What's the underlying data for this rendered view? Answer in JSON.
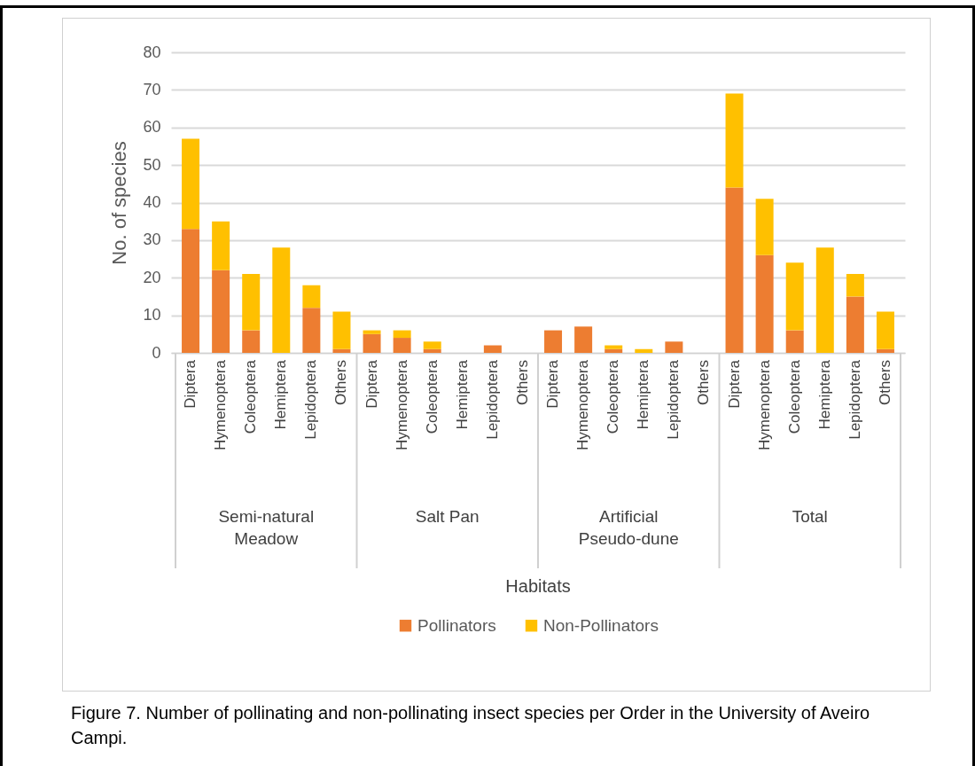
{
  "chart_data": {
    "type": "bar",
    "stacked": true,
    "ylabel": "No. of species",
    "categories": [
      "Diptera",
      "Hymenoptera",
      "Coleoptera",
      "Hemiptera",
      "Lepidoptera",
      "Others",
      "Diptera",
      "Hymenoptera",
      "Coleoptera",
      "Hemiptera",
      "Lepidoptera",
      "Others",
      "Diptera",
      "Hymenoptera",
      "Coleoptera",
      "Hemiptera",
      "Lepidoptera",
      "Others",
      "Diptera",
      "Hymenoptera",
      "Coleoptera",
      "Hemiptera",
      "Lepidoptera",
      "Others"
    ],
    "series": [
      {
        "name": "Pollinators",
        "color": "#ed7d31",
        "values": [
          33,
          22,
          6,
          0,
          12,
          1,
          5,
          4,
          1,
          0,
          2,
          0,
          6,
          7,
          1,
          0,
          3,
          0,
          44,
          26,
          6,
          0,
          15,
          1
        ]
      },
      {
        "name": "Non-Pollinators",
        "color": "#ffc000",
        "values": [
          24,
          13,
          15,
          28,
          6,
          10,
          1,
          2,
          2,
          0,
          0,
          0,
          0,
          0,
          1,
          1,
          0,
          0,
          25,
          15,
          18,
          28,
          6,
          10
        ]
      }
    ],
    "ylim": [
      0,
      80
    ],
    "yticks": [
      0,
      10,
      20,
      30,
      40,
      50,
      60,
      70,
      80
    ],
    "grid": "y",
    "legend": "bottom",
    "annotations": [
      "Semi-natural Meadow",
      "Salt Pan",
      "Artificial Pseudo-dune",
      "Total",
      "Habitats",
      "Figure 7. Number of pollinating and non-pollinating insect species per Order in the University of Aveiro Campi."
    ]
  }
}
